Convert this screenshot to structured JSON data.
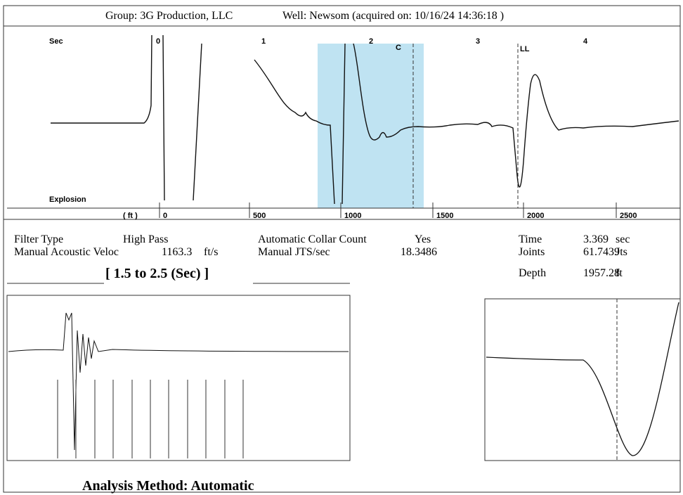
{
  "header": {
    "group": "Group: 3G Production, LLC",
    "well": "Well: Newsom (acquired on: 10/16/24 14:36:18 )"
  },
  "top_plot": {
    "time_label": "Sec",
    "time_ticks": [
      "0",
      "1",
      "2",
      "3",
      "4"
    ],
    "markers": [
      "C",
      "LL"
    ],
    "event_label": "Explosion",
    "depth_label": "( ft )",
    "depth_ticks": [
      "0",
      "500",
      "1000",
      "1500",
      "2000",
      "2500"
    ]
  },
  "info": {
    "left": [
      [
        "Filter Type",
        "High Pass"
      ],
      [
        "Manual Acoustic Veloc",
        "1163.3",
        "ft/s"
      ]
    ],
    "middle": [
      [
        "Automatic Collar Count",
        "Yes"
      ],
      [
        "Manual JTS/sec",
        "18.3486"
      ]
    ],
    "right": [
      [
        "Time",
        "3.369",
        "sec"
      ],
      [
        "Joints",
        "61.7439",
        "Jts"
      ],
      [
        "Depth",
        "1957.28",
        "ft"
      ]
    ]
  },
  "window_title": "[ 1.5  to  2.5 (Sec) ]",
  "analysis": "Analysis Method:   Automatic"
}
